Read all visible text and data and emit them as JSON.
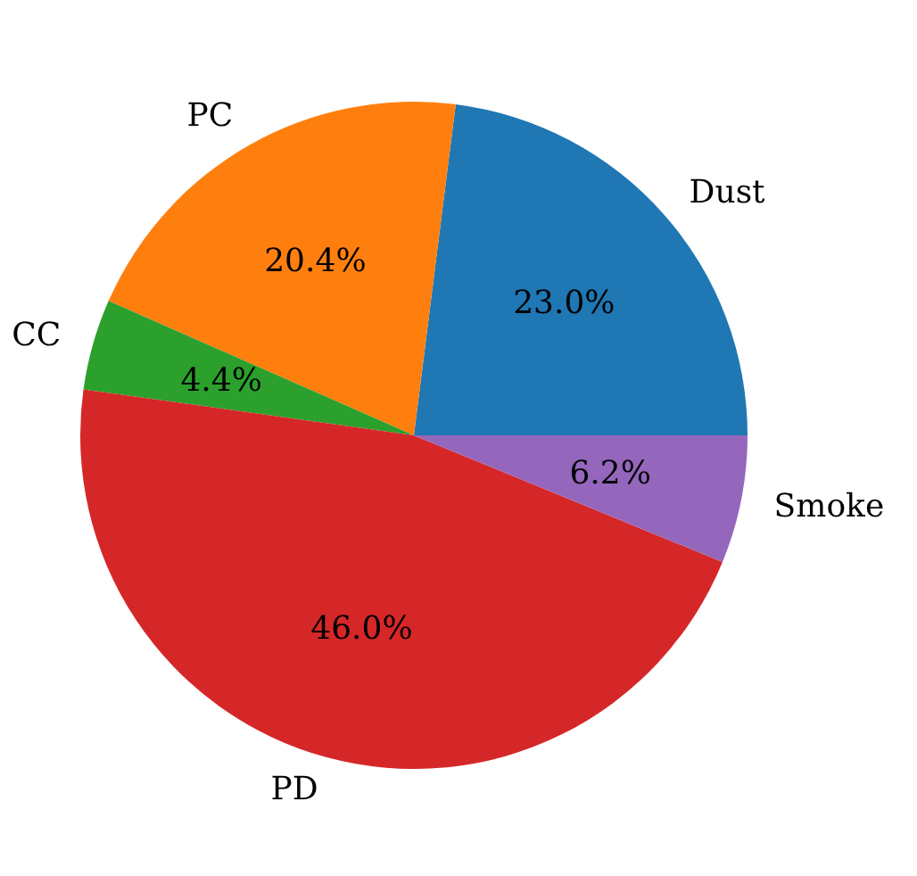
{
  "chart_data": {
    "type": "pie",
    "categories": [
      "Dust",
      "PC",
      "CC",
      "PD",
      "Smoke"
    ],
    "values": [
      23.0,
      20.4,
      4.4,
      46.0,
      6.2
    ],
    "colors": [
      "#1f77b4",
      "#ff7f0e",
      "#2ca02c",
      "#d62728",
      "#9467bd"
    ],
    "value_labels": [
      "23.0%",
      "20.4%",
      "4.4%",
      "46.0%",
      "6.2%"
    ]
  }
}
